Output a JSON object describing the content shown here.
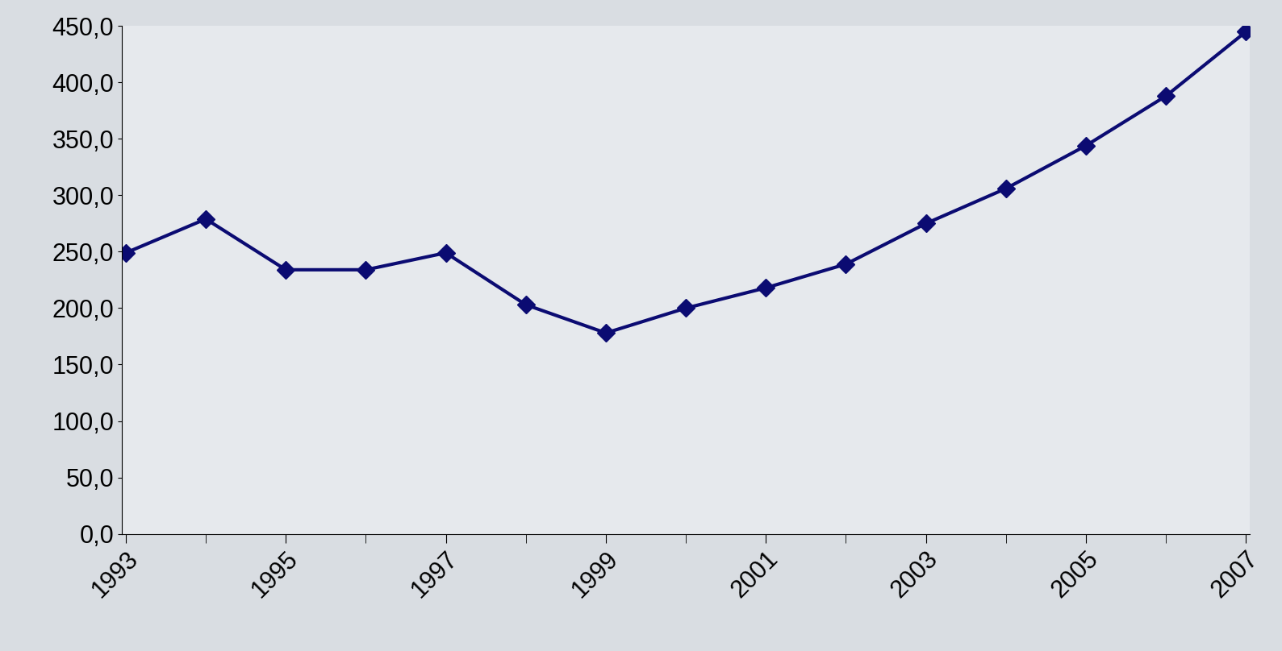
{
  "chart_data": {
    "type": "line",
    "categories": [
      "1993",
      null,
      "1995",
      null,
      "1997",
      null,
      "1999",
      null,
      "2001",
      null,
      "2003",
      null,
      "2005",
      null,
      "2007"
    ],
    "values": [
      249,
      279,
      234,
      234,
      249,
      203,
      178,
      200,
      218,
      239,
      275,
      306,
      344,
      388,
      445
    ],
    "color": "#0b0b72",
    "marker": "diamond",
    "line_style": "solid",
    "ylim": [
      0,
      450
    ],
    "yticks": [
      {
        "value": 0,
        "label": "0,0"
      },
      {
        "value": 50,
        "label": "50,0"
      },
      {
        "value": 100,
        "label": "100,0"
      },
      {
        "value": 150,
        "label": "150,0"
      },
      {
        "value": 200,
        "label": "200,0"
      },
      {
        "value": 250,
        "label": "250,0"
      },
      {
        "value": 300,
        "label": "300,0"
      },
      {
        "value": 350,
        "label": "350,0"
      },
      {
        "value": 400,
        "label": "400,0"
      },
      {
        "value": 450,
        "label": "450,0"
      }
    ],
    "grid": false
  }
}
